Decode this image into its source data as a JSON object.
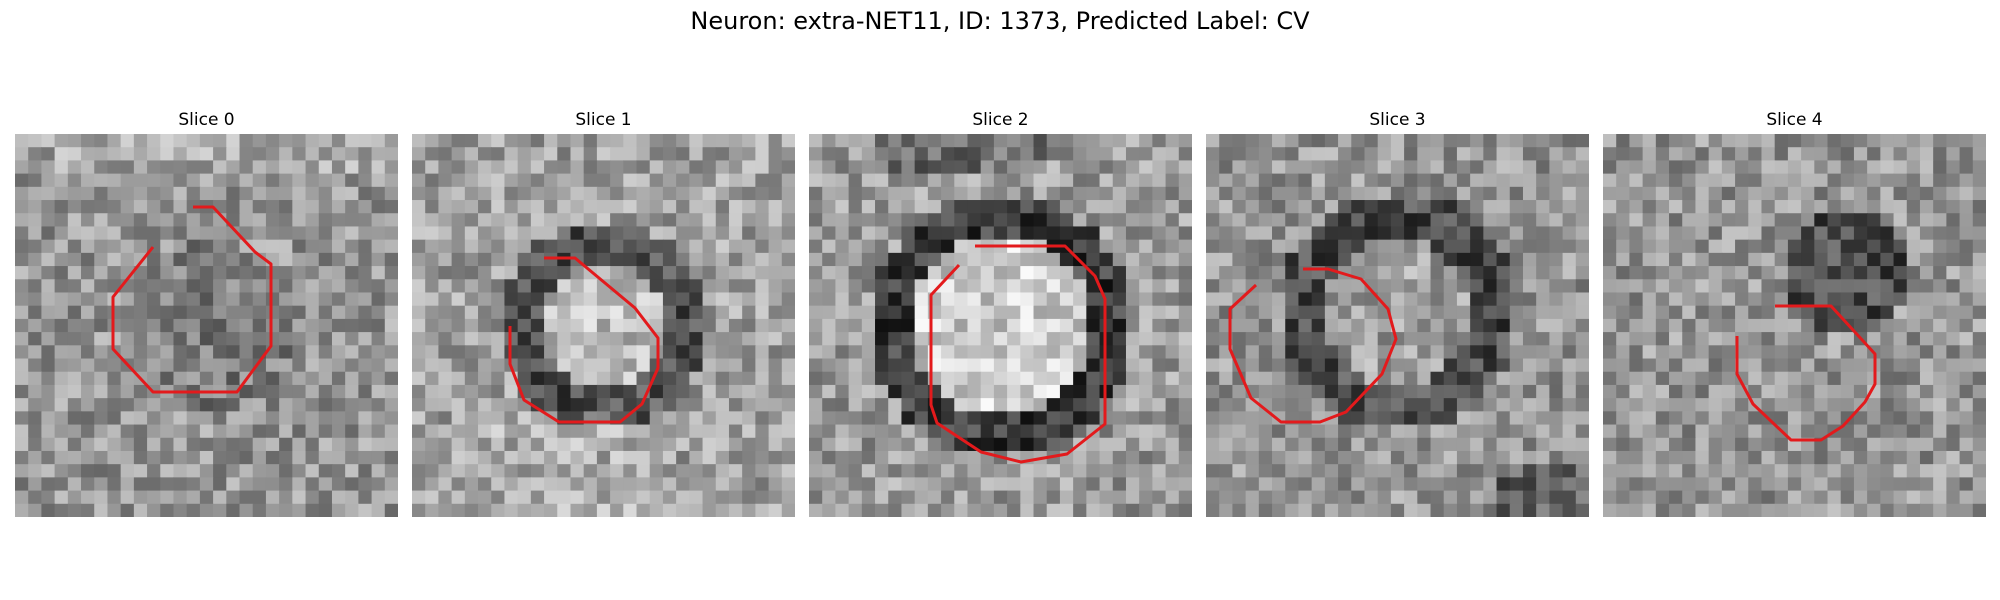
{
  "figure": {
    "title": "Neuron: extra-NET11, ID: 1373, Predicted Label: CV"
  },
  "colors": {
    "background": "#ffffff",
    "contour": "#e31a1c",
    "colormap": "gray"
  },
  "panels": [
    {
      "title": "Slice 0",
      "pattern": "noise-center-darker"
    },
    {
      "title": "Slice 1",
      "pattern": "dark-ring-bright-center"
    },
    {
      "title": "Slice 2",
      "pattern": "dark-ring-bright-center-large"
    },
    {
      "title": "Slice 3",
      "pattern": "dark-ring-offset"
    },
    {
      "title": "Slice 4",
      "pattern": "dark-blob-upper-right"
    }
  ]
}
